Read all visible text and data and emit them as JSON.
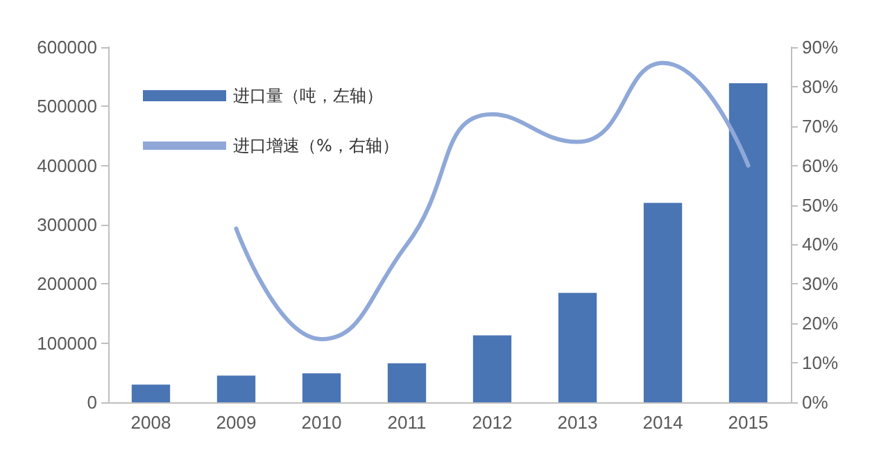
{
  "chart_data": {
    "type": "bar",
    "categories": [
      "2008",
      "2009",
      "2010",
      "2011",
      "2012",
      "2013",
      "2014",
      "2015"
    ],
    "series": [
      {
        "name": "进口量（吨，左轴）",
        "color": "#4a75b5",
        "values": [
          30000,
          45000,
          49000,
          66000,
          113000,
          185000,
          337000,
          539000
        ]
      },
      {
        "name": "进口增速（%，右轴）",
        "type": "line",
        "axis": "y2",
        "color": "#8fa8d8",
        "values": [
          null,
          44,
          16,
          40,
          73,
          66,
          86,
          60
        ]
      }
    ],
    "ylim": [
      0,
      600000
    ],
    "yticks": [
      0,
      100000,
      200000,
      300000,
      400000,
      500000,
      600000
    ],
    "y2lim": [
      0,
      90
    ],
    "y2ticks": [
      {
        "value": 0,
        "label": "0%"
      },
      {
        "value": 10,
        "label": "10%"
      },
      {
        "value": 20,
        "label": "20%"
      },
      {
        "value": 30,
        "label": "30%"
      },
      {
        "value": 40,
        "label": "40%"
      },
      {
        "value": 50,
        "label": "50%"
      },
      {
        "value": 60,
        "label": "60%"
      },
      {
        "value": 70,
        "label": "70%"
      },
      {
        "value": 80,
        "label": "80%"
      },
      {
        "value": 90,
        "label": "90%"
      }
    ],
    "grid": false,
    "legend": "top left",
    "marker": "none",
    "line_style": "solid"
  }
}
